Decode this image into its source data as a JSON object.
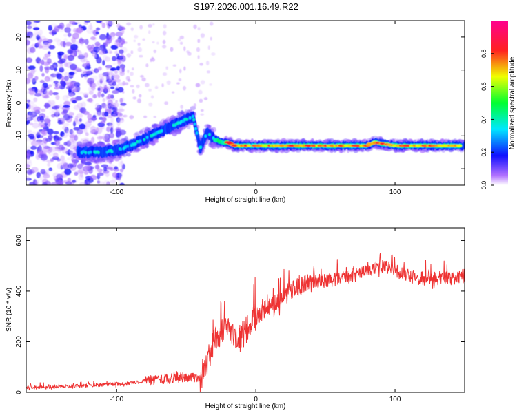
{
  "title": "S197.2026.001.16.49.R22",
  "chart_data": [
    {
      "type": "heatmap",
      "title": "S197.2026.001.16.49.R22",
      "xlabel": "Height of straight line (km)",
      "ylabel": "Frequency (Hz)",
      "xlim": [
        -165,
        150
      ],
      "ylim": [
        -25,
        25
      ],
      "xticks": [
        -100,
        0,
        100
      ],
      "yticks": [
        -20,
        -10,
        0,
        10,
        20
      ],
      "xtick_labels": [
        "-100",
        "0",
        "100"
      ],
      "ytick_labels": [
        "-20",
        "-10",
        "0",
        "10",
        "20"
      ],
      "colorbar": {
        "label": "Normalized spectral amplitude",
        "range": [
          0,
          1
        ],
        "ticks": [
          0.0,
          0.2,
          0.4,
          0.6,
          0.8
        ],
        "tick_labels": [
          "0.0",
          "0.2",
          "0.4",
          "0.6",
          "0.8"
        ],
        "colormap": "rainbow (violet-blue-cyan-green-yellow-red-magenta)"
      },
      "ridge": {
        "description": "dominant frequency track",
        "x": [
          -120,
          -110,
          -100,
          -90,
          -80,
          -70,
          -60,
          -50,
          -45,
          -40,
          -35,
          -30,
          -25,
          -20,
          -15,
          -10,
          0,
          20,
          40,
          60,
          80,
          85,
          100,
          120,
          150
        ],
        "y": [
          -15,
          -15,
          -14.5,
          -13,
          -11,
          -9,
          -7,
          -5,
          -4,
          -14,
          -9,
          -11,
          -12,
          -12,
          -13,
          -13,
          -13,
          -13,
          -13,
          -13,
          -13,
          -12,
          -13,
          -13,
          -13
        ]
      },
      "background_noise_region": [
        -165,
        -110
      ]
    },
    {
      "type": "line",
      "title": "",
      "xlabel": "Height of straight line (km)",
      "ylabel": "SNR (10 * v/v)",
      "xlim": [
        -165,
        150
      ],
      "ylim": [
        0,
        650
      ],
      "xticks": [
        -100,
        0,
        100
      ],
      "yticks": [
        0,
        200,
        400,
        600
      ],
      "xtick_labels": [
        "-100",
        "0",
        "100"
      ],
      "ytick_labels": [
        "0",
        "200",
        "400",
        "600"
      ],
      "series": [
        {
          "name": "SNR",
          "color": "#ee3333",
          "x": [
            -165,
            -150,
            -130,
            -110,
            -90,
            -80,
            -70,
            -60,
            -50,
            -40,
            -35,
            -30,
            -25,
            -20,
            -15,
            -10,
            -5,
            0,
            10,
            20,
            30,
            40,
            50,
            60,
            70,
            80,
            90,
            100,
            110,
            120,
            130,
            140,
            150
          ],
          "y": [
            20,
            20,
            25,
            30,
            35,
            45,
            50,
            55,
            60,
            55,
            120,
            200,
            230,
            250,
            230,
            210,
            270,
            300,
            340,
            380,
            420,
            440,
            440,
            450,
            460,
            480,
            500,
            480,
            460,
            450,
            450,
            450,
            460
          ]
        }
      ]
    }
  ]
}
